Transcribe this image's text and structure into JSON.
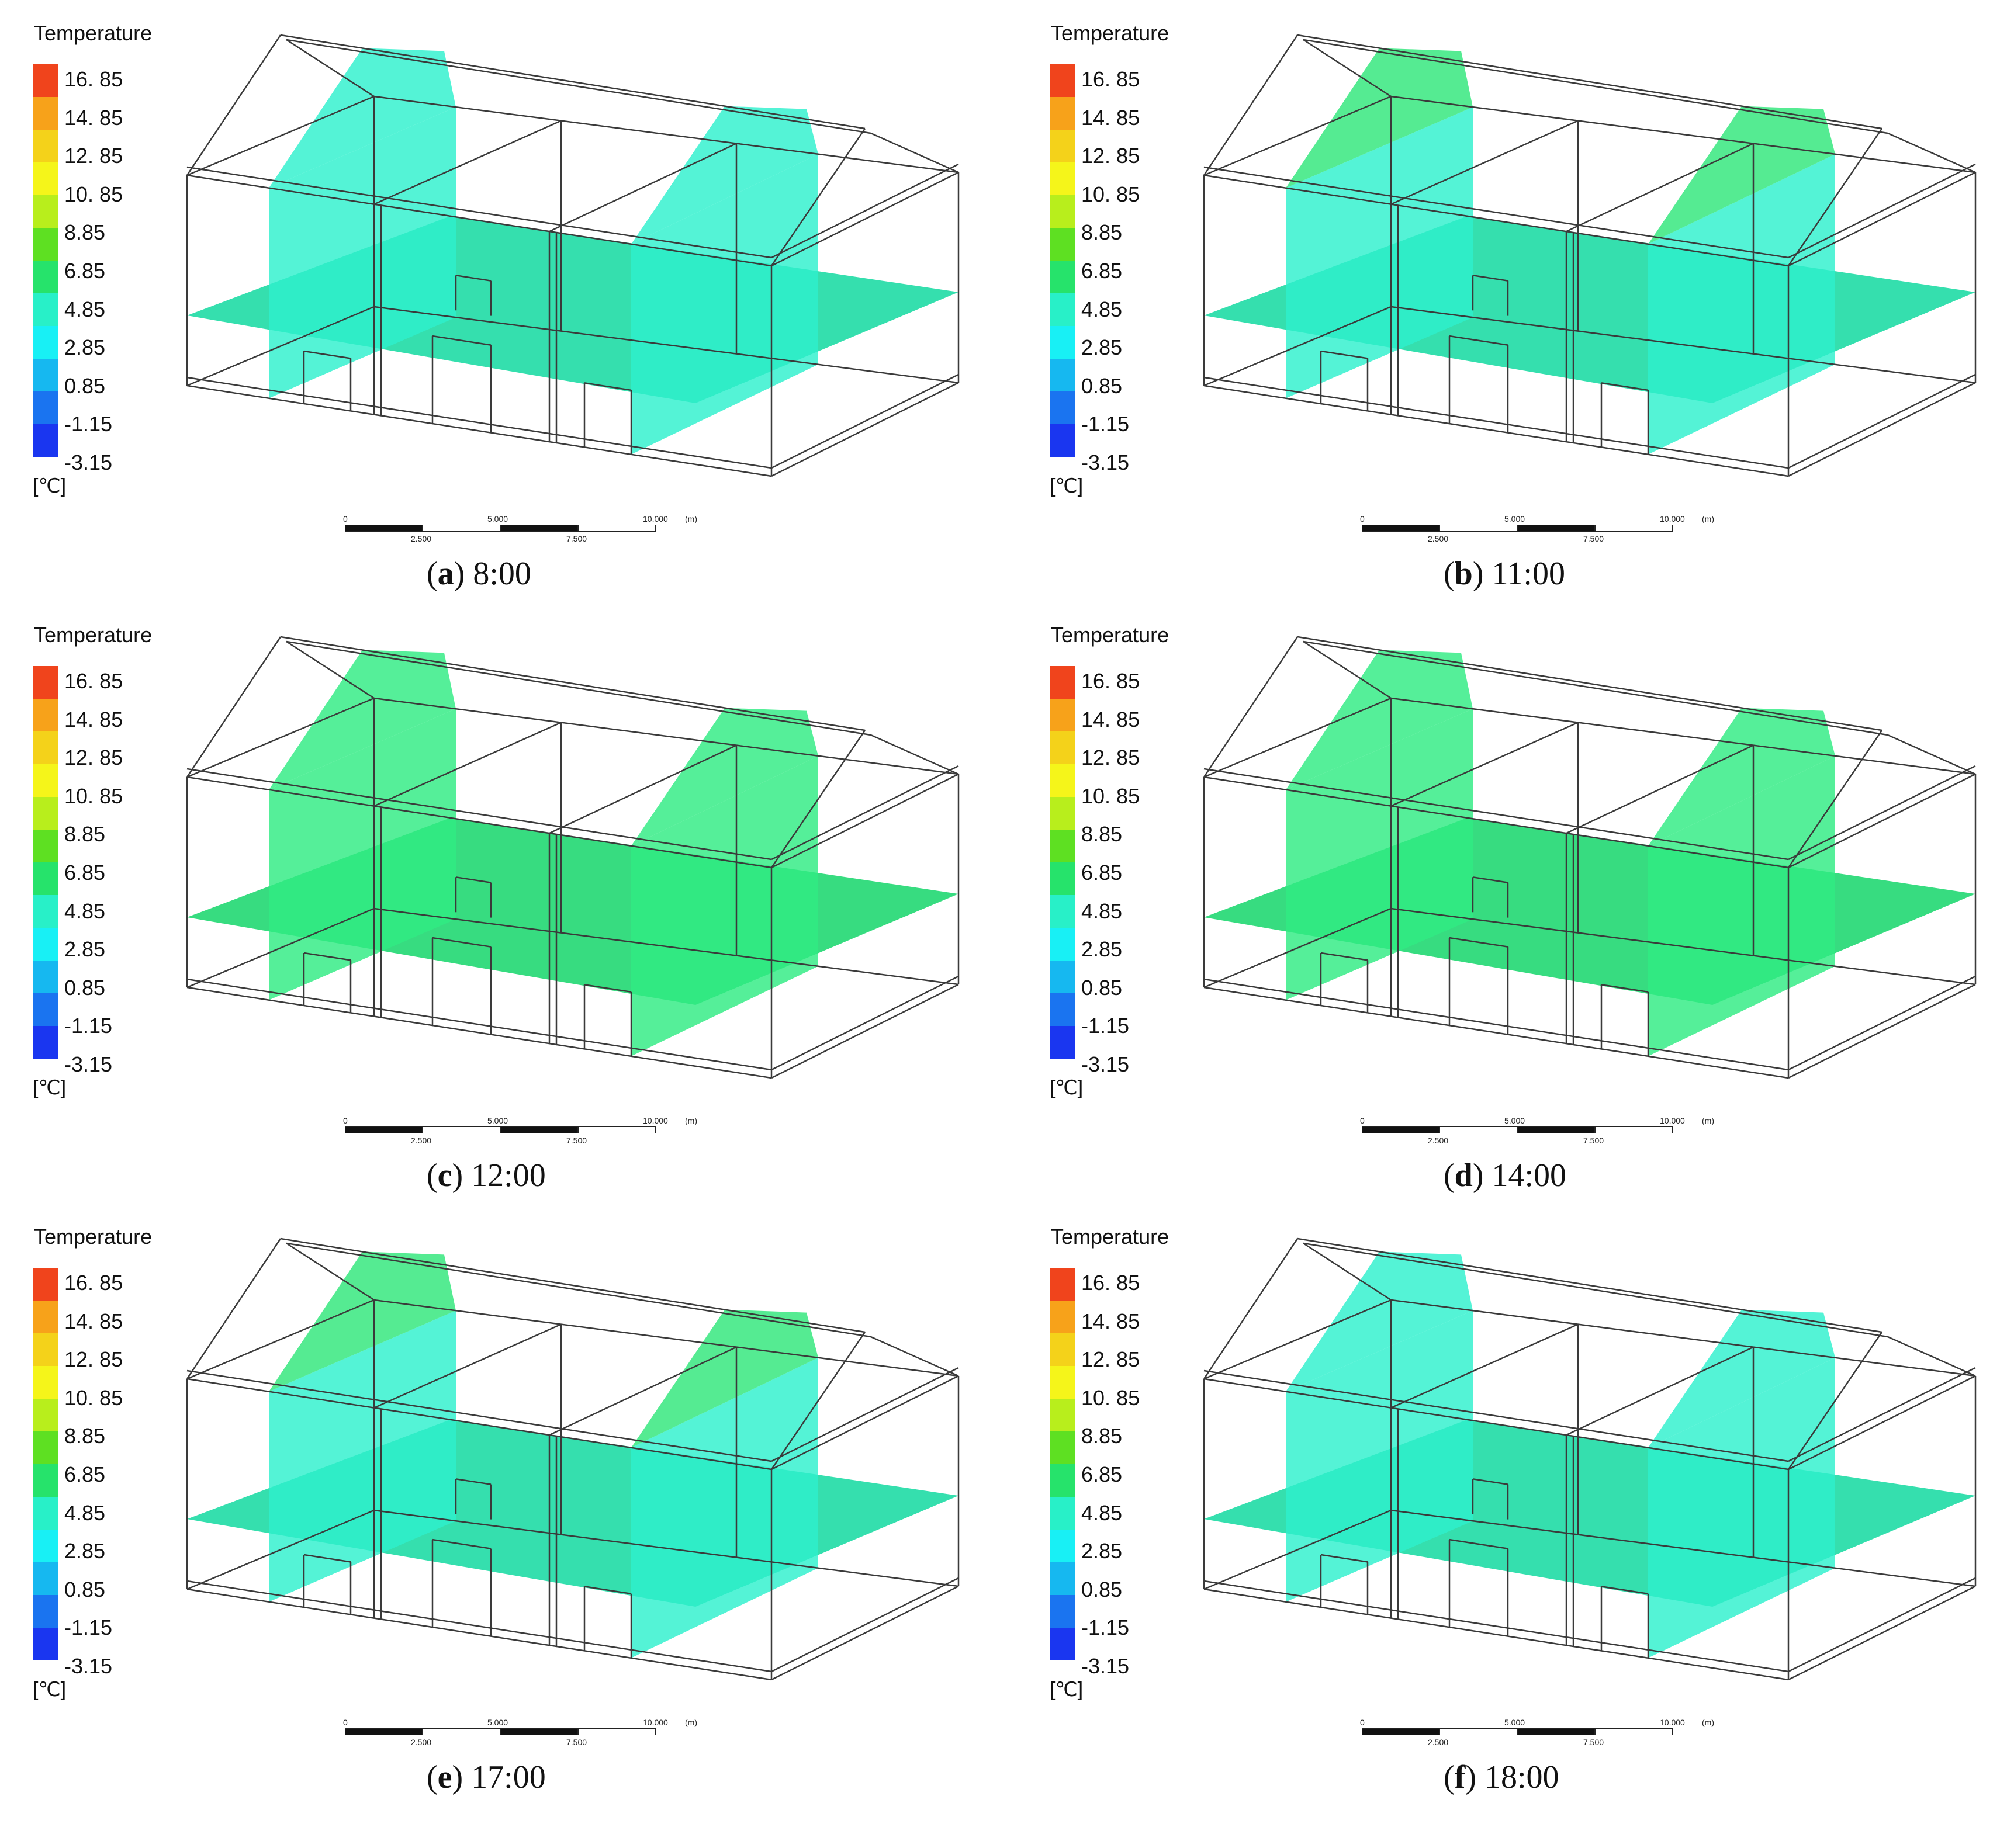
{
  "legend": {
    "title": "Temperature",
    "unit": "[℃]",
    "ticks": [
      "16. 85",
      "14. 85",
      "12. 85",
      "10. 85",
      "8.85",
      "6.85",
      "4.85",
      "2.85",
      "0.85",
      "-1.15",
      "-3.15"
    ],
    "colors": [
      "#f0441c",
      "#f7a21a",
      "#f4d21a",
      "#f5f51a",
      "#b8ee1c",
      "#5ee022",
      "#26e36b",
      "#28f0c8",
      "#18f0f5",
      "#16b8f0",
      "#1a74f0",
      "#1a36f0"
    ]
  },
  "scalebar": {
    "top_labels": [
      "0",
      "5.000",
      "10.000",
      "(m)"
    ],
    "bottom_labels": [
      "2.500",
      "7.500"
    ]
  },
  "panels": [
    {
      "letter": "a",
      "time": "8:00",
      "wall_color": "#2ef0cd",
      "floor_color": "#12d9a0",
      "roof_color": "#2ef0cd"
    },
    {
      "letter": "b",
      "time": "11:00",
      "wall_color": "#2ef0cd",
      "floor_color": "#12d9a0",
      "roof_color": "#30e77a"
    },
    {
      "letter": "c",
      "time": "12:00",
      "wall_color": "#2feb82",
      "floor_color": "#14d66a",
      "roof_color": "#2feb82"
    },
    {
      "letter": "d",
      "time": "14:00",
      "wall_color": "#2feb82",
      "floor_color": "#14d66a",
      "roof_color": "#2feb82"
    },
    {
      "letter": "e",
      "time": "17:00",
      "wall_color": "#2ef0cd",
      "floor_color": "#12d9a0",
      "roof_color": "#30e77a"
    },
    {
      "letter": "f",
      "time": "18:00",
      "wall_color": "#2ef0cd",
      "floor_color": "#12d9a0",
      "roof_color": "#2ef0cd"
    }
  ]
}
